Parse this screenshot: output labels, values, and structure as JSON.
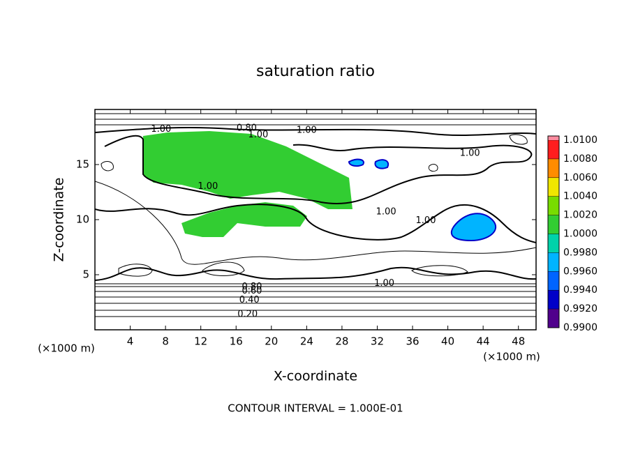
{
  "chart_data": {
    "type": "contour",
    "title": "saturation ratio",
    "x_label": "X-coordinate",
    "y_label": "Z-coordinate",
    "x_unit_left": "(×1000 m)",
    "x_unit_right": "(×1000 m)",
    "footer": "CONTOUR INTERVAL = 1.000E-01",
    "xlim": [
      0,
      50
    ],
    "xticks": [
      4,
      8,
      12,
      16,
      20,
      24,
      28,
      32,
      36,
      40,
      44,
      48
    ],
    "ylim": [
      0,
      20
    ],
    "yticks": [
      5,
      10,
      15
    ],
    "colorbar": {
      "lim": [
        0.99,
        1.01
      ],
      "ticks": [
        {
          "value": 0.99,
          "label": "0.9900"
        },
        {
          "value": 0.992,
          "label": "0.9920"
        },
        {
          "value": 0.994,
          "label": "0.9940"
        },
        {
          "value": 0.996,
          "label": "0.9960"
        },
        {
          "value": 0.998,
          "label": "0.9980"
        },
        {
          "value": 1.0,
          "label": "1.0000"
        },
        {
          "value": 1.002,
          "label": "1.0020"
        },
        {
          "value": 1.004,
          "label": "1.0040"
        },
        {
          "value": 1.006,
          "label": "1.0060"
        },
        {
          "value": 1.008,
          "label": "1.0080"
        },
        {
          "value": 1.01,
          "label": "1.0100"
        }
      ],
      "colors": [
        "#50008c",
        "#0000c8",
        "#0064ff",
        "#00b4ff",
        "#00d2aa",
        "#32cd32",
        "#78dc00",
        "#f0e600",
        "#ff8c00",
        "#ff1e1e",
        "#ff8ca0"
      ]
    },
    "contour_labels": [
      {
        "x": 7.5,
        "y": 18.2,
        "label": "1.00"
      },
      {
        "x": 17.2,
        "y": 18.3,
        "label": "0.80"
      },
      {
        "x": 18.5,
        "y": 17.7,
        "label": "1.00"
      },
      {
        "x": 24.0,
        "y": 18.1,
        "label": "1.00"
      },
      {
        "x": 42.5,
        "y": 16.0,
        "label": "1.00"
      },
      {
        "x": 12.8,
        "y": 13.0,
        "label": "1.00"
      },
      {
        "x": 33.0,
        "y": 10.7,
        "label": "1.00"
      },
      {
        "x": 37.5,
        "y": 9.9,
        "label": "1.00"
      },
      {
        "x": 32.8,
        "y": 4.2,
        "label": "1.00"
      },
      {
        "x": 17.8,
        "y": 3.9,
        "label": "0.80"
      },
      {
        "x": 17.8,
        "y": 3.5,
        "label": "0.60"
      },
      {
        "x": 17.5,
        "y": 2.7,
        "label": "0.40"
      },
      {
        "x": 17.3,
        "y": 1.4,
        "label": "0.20"
      }
    ]
  }
}
